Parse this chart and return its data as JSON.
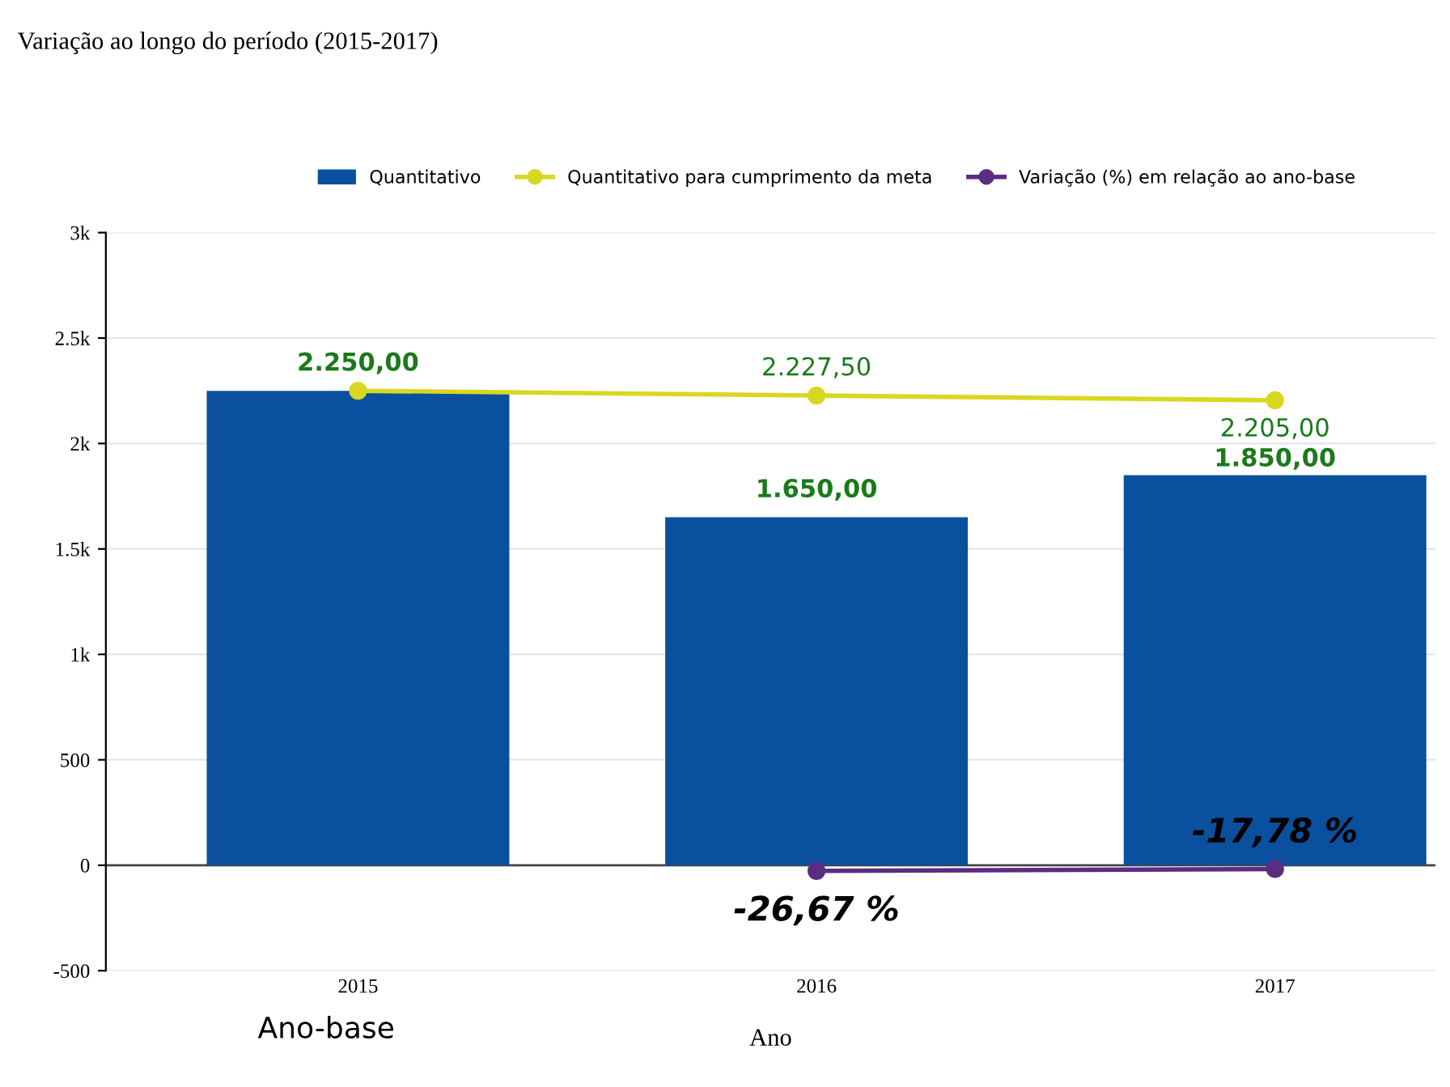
{
  "chart_data": {
    "type": "bar",
    "title": "Variação ao longo do período (2015-2017)",
    "xlabel": "Ano",
    "annotations": [
      "Ano-base"
    ],
    "categories": [
      "2015",
      "2016",
      "2017"
    ],
    "series": [
      {
        "name": "Quantitativo",
        "color": "#0a509e",
        "values": [
          2250,
          1650,
          1850
        ],
        "value_labels": [
          "2.250,00",
          "1.650,00",
          "1.850,00"
        ]
      },
      {
        "name": "Quantitativo para cumprimento da meta",
        "type": "line",
        "color": "#d8d820",
        "values": [
          2250,
          2227.5,
          2205
        ],
        "value_labels": [
          null,
          "2.227,50",
          "2.205,00"
        ]
      },
      {
        "name": "Variação (%) em relação ao ano-base",
        "type": "line",
        "color": "#5a2d82",
        "values": [
          null,
          -26.67,
          -17.78
        ],
        "value_labels": [
          null,
          "-26,67 %",
          "-17,78 %"
        ]
      }
    ],
    "ylim": [
      -500,
      3000
    ],
    "yticks": [
      -500,
      0,
      500,
      {
        "value": 1000,
        "label": "1k"
      },
      {
        "value": 1500,
        "label": "1.5k"
      },
      {
        "value": 2000,
        "label": "2k"
      },
      {
        "value": 2500,
        "label": "2.5k"
      },
      {
        "value": 3000,
        "label": "3k"
      }
    ],
    "grid": "y",
    "legend": "top",
    "marker": "circle"
  }
}
